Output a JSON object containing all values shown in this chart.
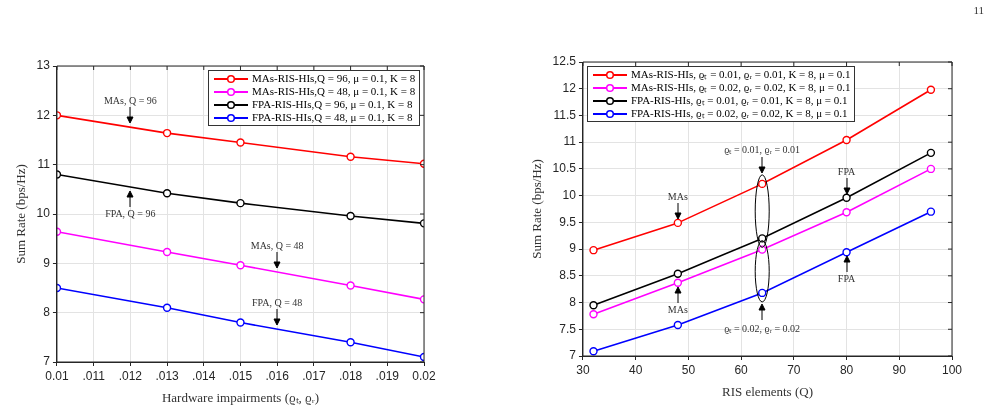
{
  "chart_data": [
    {
      "type": "line",
      "xlabel": "Hardware impairments (ϱₜ, ϱᵣ)",
      "ylabel": "Sum Rate (bps/Hz)",
      "x": [
        0.01,
        0.013,
        0.015,
        0.018,
        0.02
      ],
      "xlim": [
        0.01,
        0.02
      ],
      "xticks": [
        {
          "value": 0.01,
          "label": "0.01"
        },
        {
          "value": 0.011,
          "label": ".011"
        },
        {
          "value": 0.012,
          "label": ".012"
        },
        {
          "value": 0.013,
          "label": ".013"
        },
        {
          "value": 0.014,
          "label": ".014"
        },
        {
          "value": 0.015,
          "label": ".015"
        },
        {
          "value": 0.016,
          "label": ".016"
        },
        {
          "value": 0.017,
          "label": ".017"
        },
        {
          "value": 0.018,
          "label": ".018"
        },
        {
          "value": 0.019,
          "label": ".019"
        },
        {
          "value": 0.02,
          "label": "0.02"
        }
      ],
      "ylim": [
        7,
        13
      ],
      "yticks": [
        7,
        8,
        9,
        10,
        11,
        12,
        13
      ],
      "series": [
        {
          "name": "MAs-RIS-HIs,Q = 96, μ = 0.1, K = 8",
          "color": "#ff0000",
          "values": [
            12.0,
            11.64,
            11.45,
            11.16,
            11.02
          ]
        },
        {
          "name": "MAs-RIS-HIs,Q = 48, μ = 0.1, K = 8",
          "color": "#ff00ff",
          "values": [
            9.64,
            9.23,
            8.96,
            8.55,
            8.27
          ]
        },
        {
          "name": "FPA-RIS-HIs,Q = 96, μ = 0.1, K = 8",
          "color": "#000000",
          "values": [
            10.8,
            10.42,
            10.22,
            9.96,
            9.81
          ]
        },
        {
          "name": "FPA-RIS-HIs,Q = 48, μ = 0.1, K = 8",
          "color": "#0000ff",
          "values": [
            8.5,
            8.1,
            7.8,
            7.4,
            7.1
          ]
        }
      ],
      "annotations": [
        {
          "text": "MAs, Q = 96",
          "x": 0.012,
          "y": 11.76
        },
        {
          "text": "FPA, Q = 96",
          "x": 0.012,
          "y": 10.55
        },
        {
          "text": "MAs, Q = 48",
          "x": 0.016,
          "y": 8.82
        },
        {
          "text": "FPA, Q = 48",
          "x": 0.016,
          "y": 7.66
        }
      ],
      "grid": true,
      "legend": "top right",
      "marker": "circle",
      "line_style": "solid"
    },
    {
      "type": "line",
      "xlabel": "RIS elements (Q)",
      "ylabel": "Sum Rate (bps/Hz)",
      "x": [
        32,
        48,
        64,
        80,
        96
      ],
      "xlim": [
        30,
        100
      ],
      "xticks": [
        30,
        40,
        50,
        60,
        70,
        80,
        90,
        100
      ],
      "ylim": [
        7,
        12.5
      ],
      "yticks": [
        7,
        7.5,
        8,
        8.5,
        9,
        9.5,
        10,
        10.5,
        11,
        11.5,
        12,
        12.5
      ],
      "series": [
        {
          "name": "MAs-RIS-HIs, ϱₜ = 0.01, ϱᵣ = 0.01, K = 8, μ = 0.1",
          "color": "#ff0000",
          "values": [
            8.98,
            9.49,
            10.22,
            11.04,
            11.98
          ]
        },
        {
          "name": "MAs-RIS-HIs, ϱₜ = 0.02, ϱᵣ = 0.02, K = 8, μ = 0.1",
          "color": "#ff00ff",
          "values": [
            7.78,
            8.37,
            8.99,
            9.69,
            10.5
          ]
        },
        {
          "name": "FPA-RIS-HIs, ϱₜ = 0.01, ϱᵣ = 0.01, K = 8, μ = 0.1",
          "color": "#000000",
          "values": [
            7.95,
            8.54,
            9.2,
            9.96,
            10.8
          ]
        },
        {
          "name": "FPA-RIS-HIs, ϱₜ = 0.02, ϱᵣ = 0.02, K = 8, μ = 0.1",
          "color": "#0000ff",
          "values": [
            7.09,
            7.58,
            8.18,
            8.94,
            9.7
          ]
        }
      ],
      "annotations": [
        {
          "text": "MAs",
          "x": 48,
          "y": 9.49
        },
        {
          "text": "MAs",
          "x": 48,
          "y": 8.37
        },
        {
          "text": "FPA",
          "x": 80,
          "y": 9.96
        },
        {
          "text": "FPA",
          "x": 80,
          "y": 8.94
        },
        {
          "text": "ϱₜ = 0.01, ϱᵣ = 0.01",
          "x": 64,
          "y": 10.22
        },
        {
          "text": "ϱₜ = 0.02, ϱᵣ = 0.02",
          "x": 64,
          "y": 8.18
        },
        "11"
      ],
      "grid": true,
      "legend": "top left",
      "marker": "circle",
      "line_style": "solid"
    }
  ]
}
